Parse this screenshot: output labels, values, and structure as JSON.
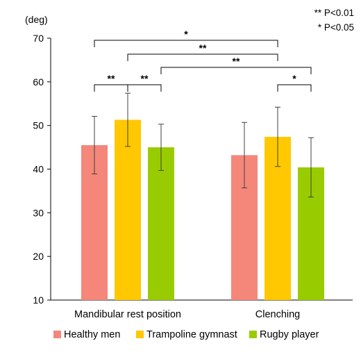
{
  "chart_data": {
    "type": "bar",
    "unit_label": "(deg)",
    "categories": [
      "Mandibular rest position",
      "Clenching"
    ],
    "series": [
      {
        "name": "Healthy men",
        "color": "#f4877a",
        "values": [
          45.5,
          43.2
        ],
        "error": [
          6.6,
          7.5
        ]
      },
      {
        "name": "Trampoline gymnast",
        "color": "#ffc800",
        "values": [
          51.3,
          47.4
        ],
        "error": [
          6.1,
          6.8
        ]
      },
      {
        "name": "Rugby player",
        "color": "#99cc00",
        "values": [
          45.0,
          40.4
        ],
        "error": [
          5.3,
          6.8
        ]
      }
    ],
    "ylim": [
      10,
      70
    ],
    "yticks": [
      10,
      20,
      30,
      40,
      50,
      60,
      70
    ],
    "grid": false,
    "legend_position": "bottom",
    "significance": [
      {
        "from": [
          0,
          0
        ],
        "to": [
          1,
          1
        ],
        "label": "*"
      },
      {
        "from": [
          0,
          1
        ],
        "to": [
          1,
          1
        ],
        "label": "**"
      },
      {
        "from": [
          0,
          2
        ],
        "to": [
          1,
          2
        ],
        "label": "**"
      },
      {
        "from": [
          0,
          0
        ],
        "to": [
          0,
          1
        ],
        "label": "**"
      },
      {
        "from": [
          0,
          1
        ],
        "to": [
          0,
          2
        ],
        "label": "**"
      },
      {
        "from": [
          1,
          1
        ],
        "to": [
          1,
          2
        ],
        "label": "*"
      }
    ],
    "notes": [
      "** P<0.01",
      "* P<0.05"
    ]
  }
}
